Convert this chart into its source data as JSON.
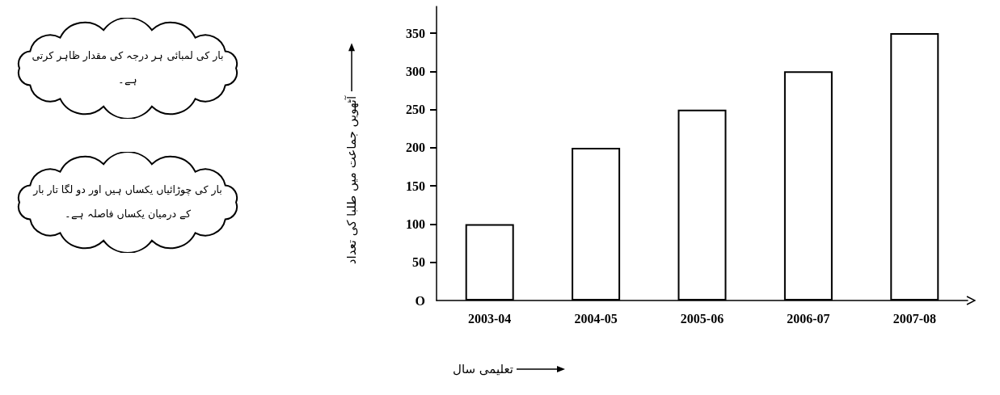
{
  "chart_data": {
    "type": "bar",
    "categories": [
      "2003-04",
      "2004-05",
      "2005-06",
      "2006-07",
      "2007-08"
    ],
    "values": [
      100,
      200,
      250,
      300,
      350
    ],
    "color": "#ffffff",
    "xlabel": "تعلیمی سال",
    "ylabel": "آٹھویں جماعت میں طلبا کی تعداد",
    "ylim": [
      0,
      385
    ],
    "yticks": [
      {
        "value": 0,
        "label": "O"
      },
      50,
      100,
      150,
      200,
      250,
      300,
      350
    ],
    "annotations": [
      "بار کی لمبائی ہر درجہ کی مقدار ظاہر کرتی ہے۔",
      "بار کی چوڑائیاں یکساں ہیں اور دو لگا تار بار کے درمیان یکساں فاصلہ ہے۔"
    ]
  }
}
